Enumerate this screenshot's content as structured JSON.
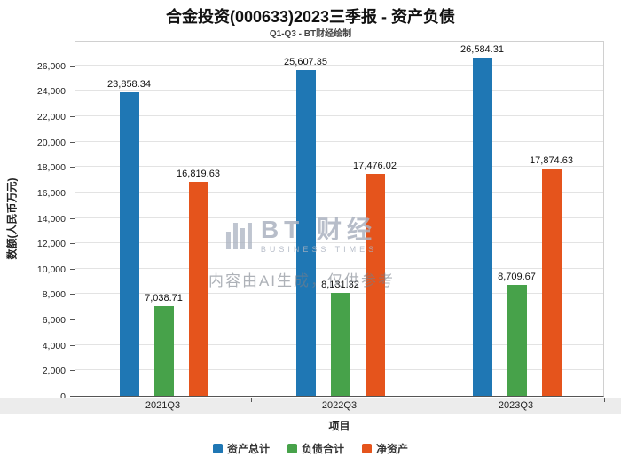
{
  "chart_data": {
    "type": "bar",
    "title": "合金投资(000633)2023三季报 - 资产负债",
    "subtitle": "Q1-Q3 - BT财经绘制",
    "xlabel": "项目",
    "ylabel": "数额(人民币万元)",
    "categories": [
      "2021Q3",
      "2022Q3",
      "2023Q3"
    ],
    "series": [
      {
        "name": "资产总计",
        "color": "#1f77b4",
        "values": [
          23858.34,
          25607.35,
          26584.31
        ]
      },
      {
        "name": "负债合计",
        "color": "#47a24a",
        "values": [
          7038.71,
          8131.32,
          8709.67
        ]
      },
      {
        "name": "净资产",
        "color": "#e5541c",
        "values": [
          16819.63,
          17476.02,
          17874.63
        ]
      }
    ],
    "ylim": [
      0,
      28000
    ],
    "ytick_step": 2000,
    "ytick_max": 26000,
    "grid": true,
    "legend_position": "bottom"
  },
  "watermark": {
    "logo_text": "BT 财经",
    "logo_sub": "BUSINESS TIMES",
    "disclaimer": "内容由AI生成，仅供参考"
  }
}
